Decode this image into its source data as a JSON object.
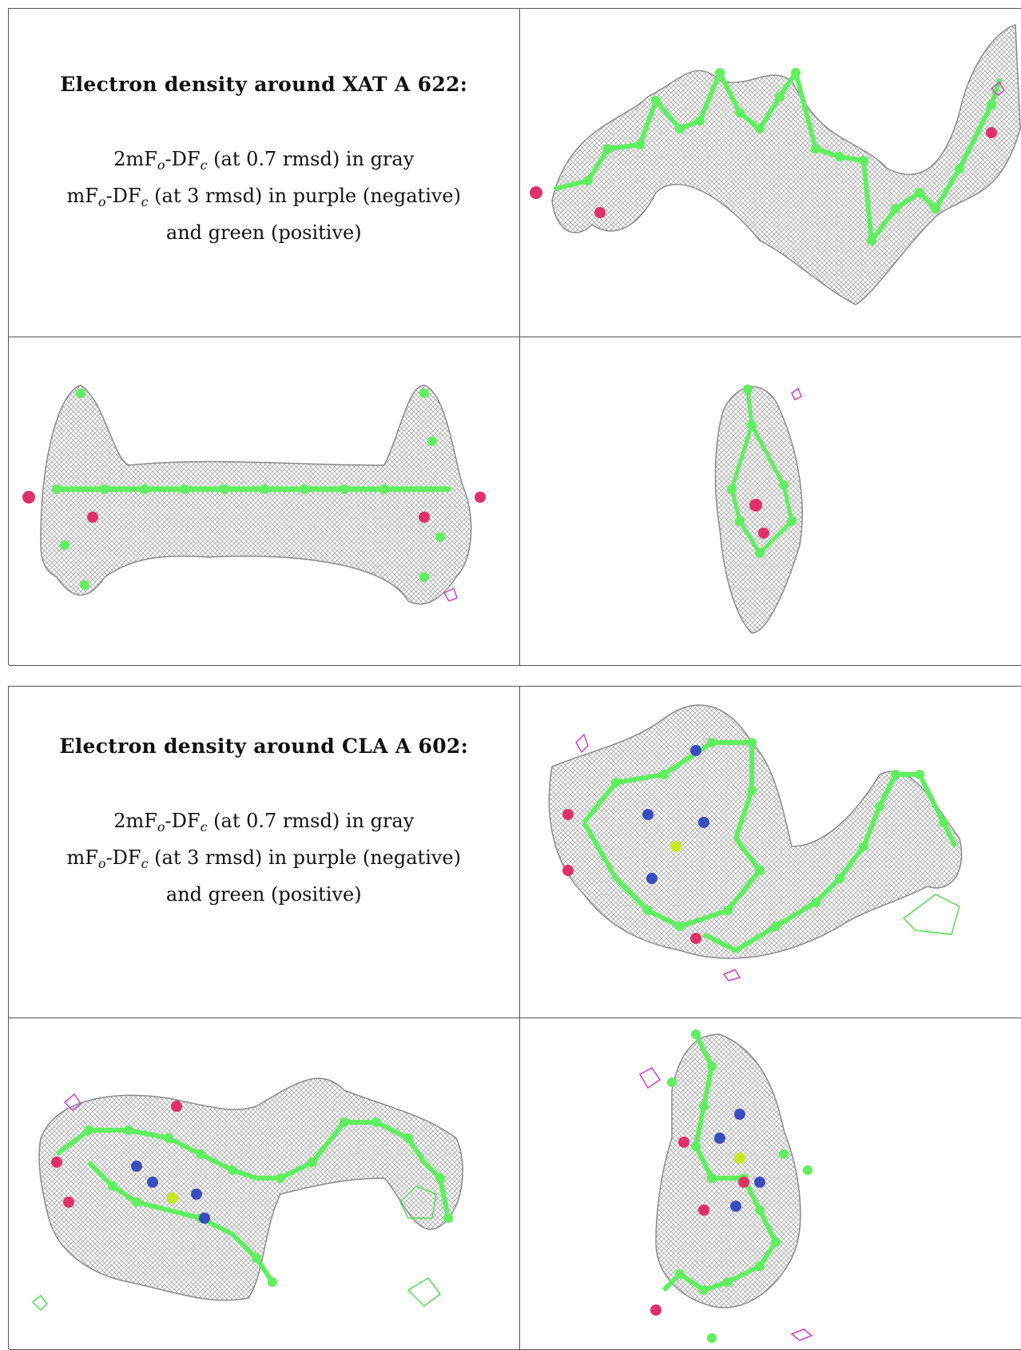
{
  "panels": [
    {
      "title": "Electron density around XAT A 622:",
      "line1": {
        "prefix": "2mF",
        "sub1": "o",
        "mid": "-DF",
        "sub2": "c",
        "rest": " (at 0.7 rmsd) in gray"
      },
      "line2": {
        "prefix": "mF",
        "sub1": "o",
        "mid": "-DF",
        "sub2": "c",
        "rest": " (at 3 rmsd) in purple (negative)"
      },
      "line3": "and green (positive)"
    },
    {
      "title": "Electron density around CLA A 602:",
      "line1": {
        "prefix": "2mF",
        "sub1": "o",
        "mid": "-DF",
        "sub2": "c",
        "rest": " (at 0.7 rmsd) in gray"
      },
      "line2": {
        "prefix": "mF",
        "sub1": "o",
        "mid": "-DF",
        "sub2": "c",
        "rest": " (at 3 rmsd) in purple (negative)"
      },
      "line3": "and green (positive)"
    }
  ],
  "colors": {
    "mesh": "#8a8a8a",
    "carbon": "#5ef05e",
    "oxygen": "#e0306a",
    "nitrogen": "#3a4cc0",
    "magnesium": "#c8e820",
    "negative": "#d040d0",
    "positive": "#50e050"
  }
}
